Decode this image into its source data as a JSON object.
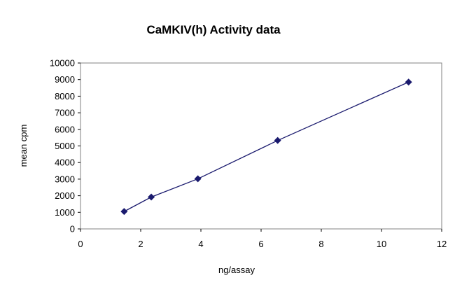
{
  "chart_data": {
    "type": "line",
    "title": "CaMKIV(h) Activity data",
    "xlabel": "ng/assay",
    "ylabel": "mean cpm",
    "xlim": [
      0,
      12
    ],
    "ylim": [
      0,
      10000
    ],
    "x_ticks": [
      0,
      2,
      4,
      6,
      8,
      10,
      12
    ],
    "y_ticks": [
      0,
      1000,
      2000,
      3000,
      4000,
      5000,
      6000,
      7000,
      8000,
      9000,
      10000
    ],
    "grid": false,
    "legend": "none",
    "series": [
      {
        "name": "CaMKIV(h)",
        "color": "#1a1a6e",
        "marker": "diamond",
        "x": [
          1.45,
          2.35,
          3.9,
          6.55,
          10.9
        ],
        "y": [
          1050,
          1920,
          3020,
          5330,
          8850
        ]
      }
    ]
  }
}
